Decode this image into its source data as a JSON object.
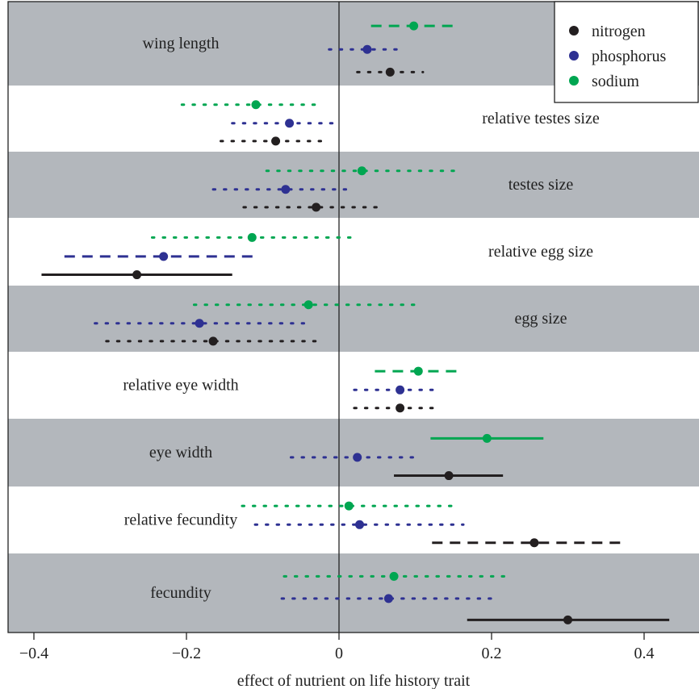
{
  "chart_data": {
    "type": "forest",
    "xlabel": "effect of nutrient on life history trait",
    "xlim": [
      -0.43,
      0.47
    ],
    "xticks": [
      -0.4,
      -0.2,
      0,
      0.2,
      0.4
    ],
    "xtick_labels": [
      "−0.4",
      "−0.2",
      "0",
      "0.2",
      "0.4"
    ],
    "reference_line": 0,
    "band_color": "#b3b7bc",
    "legend": {
      "placement": "top-right",
      "items": [
        {
          "label": "nitrogen",
          "color": "#231f20"
        },
        {
          "label": "phosphorus",
          "color": "#2e3192"
        },
        {
          "label": "sodium",
          "color": "#00a651"
        }
      ]
    },
    "line_style_legend": "solid / dashed / dotted confidence intervals",
    "traits": [
      {
        "name": "wing length",
        "shaded": true,
        "label_side": "left",
        "estimates": [
          {
            "nutrient": "sodium",
            "x": 0.098,
            "lo": 0.042,
            "hi": 0.155,
            "style": "dashed"
          },
          {
            "nutrient": "phosphorus",
            "x": 0.037,
            "lo": -0.013,
            "hi": 0.087,
            "style": "dotted"
          },
          {
            "nutrient": "nitrogen",
            "x": 0.067,
            "lo": 0.024,
            "hi": 0.11,
            "style": "dotted"
          }
        ]
      },
      {
        "name": "relative testes size",
        "shaded": false,
        "label_side": "right",
        "estimates": [
          {
            "nutrient": "sodium",
            "x": -0.109,
            "lo": -0.206,
            "hi": -0.023,
            "style": "dotted"
          },
          {
            "nutrient": "phosphorus",
            "x": -0.065,
            "lo": -0.14,
            "hi": 0.0,
            "style": "dotted"
          },
          {
            "nutrient": "nitrogen",
            "x": -0.083,
            "lo": -0.155,
            "hi": -0.015,
            "style": "dotted"
          }
        ]
      },
      {
        "name": "testes size",
        "shaded": true,
        "label_side": "right",
        "estimates": [
          {
            "nutrient": "sodium",
            "x": 0.03,
            "lo": -0.095,
            "hi": 0.155,
            "style": "dotted"
          },
          {
            "nutrient": "phosphorus",
            "x": -0.07,
            "lo": -0.165,
            "hi": 0.013,
            "style": "dotted"
          },
          {
            "nutrient": "nitrogen",
            "x": -0.03,
            "lo": -0.125,
            "hi": 0.058,
            "style": "dotted"
          }
        ]
      },
      {
        "name": "relative egg size",
        "shaded": false,
        "label_side": "right",
        "estimates": [
          {
            "nutrient": "sodium",
            "x": -0.114,
            "lo": -0.245,
            "hi": 0.016,
            "style": "dotted"
          },
          {
            "nutrient": "phosphorus",
            "x": -0.23,
            "lo": -0.36,
            "hi": -0.105,
            "style": "dashed"
          },
          {
            "nutrient": "nitrogen",
            "x": -0.265,
            "lo": -0.39,
            "hi": -0.14,
            "style": "solid"
          }
        ]
      },
      {
        "name": "egg size",
        "shaded": true,
        "label_side": "right",
        "estimates": [
          {
            "nutrient": "sodium",
            "x": -0.04,
            "lo": -0.19,
            "hi": 0.1,
            "style": "dotted"
          },
          {
            "nutrient": "phosphorus",
            "x": -0.183,
            "lo": -0.32,
            "hi": -0.046,
            "style": "dotted"
          },
          {
            "nutrient": "nitrogen",
            "x": -0.165,
            "lo": -0.305,
            "hi": -0.03,
            "style": "dotted"
          }
        ]
      },
      {
        "name": "relative eye width",
        "shaded": false,
        "label_side": "left",
        "estimates": [
          {
            "nutrient": "sodium",
            "x": 0.104,
            "lo": 0.047,
            "hi": 0.162,
            "style": "dashed"
          },
          {
            "nutrient": "phosphorus",
            "x": 0.08,
            "lo": 0.02,
            "hi": 0.133,
            "style": "dotted"
          },
          {
            "nutrient": "nitrogen",
            "x": 0.08,
            "lo": 0.02,
            "hi": 0.133,
            "style": "dotted"
          }
        ]
      },
      {
        "name": "eye width",
        "shaded": true,
        "label_side": "left",
        "estimates": [
          {
            "nutrient": "sodium",
            "x": 0.194,
            "lo": 0.12,
            "hi": 0.268,
            "style": "solid"
          },
          {
            "nutrient": "phosphorus",
            "x": 0.024,
            "lo": -0.063,
            "hi": 0.103,
            "style": "dotted"
          },
          {
            "nutrient": "nitrogen",
            "x": 0.144,
            "lo": 0.072,
            "hi": 0.215,
            "style": "solid"
          }
        ]
      },
      {
        "name": "relative fecundity",
        "shaded": false,
        "label_side": "left",
        "estimates": [
          {
            "nutrient": "sodium",
            "x": 0.013,
            "lo": -0.127,
            "hi": 0.148,
            "style": "dotted"
          },
          {
            "nutrient": "phosphorus",
            "x": 0.027,
            "lo": -0.11,
            "hi": 0.163,
            "style": "dotted"
          },
          {
            "nutrient": "nitrogen",
            "x": 0.256,
            "lo": 0.122,
            "hi": 0.375,
            "style": "dashed"
          }
        ]
      },
      {
        "name": "fecundity",
        "shaded": true,
        "label_side": "left",
        "estimates": [
          {
            "nutrient": "sodium",
            "x": 0.072,
            "lo": -0.072,
            "hi": 0.217,
            "style": "dotted"
          },
          {
            "nutrient": "phosphorus",
            "x": 0.065,
            "lo": -0.075,
            "hi": 0.2,
            "style": "dotted"
          },
          {
            "nutrient": "nitrogen",
            "x": 0.3,
            "lo": 0.168,
            "hi": 0.433,
            "style": "solid"
          }
        ]
      }
    ]
  }
}
